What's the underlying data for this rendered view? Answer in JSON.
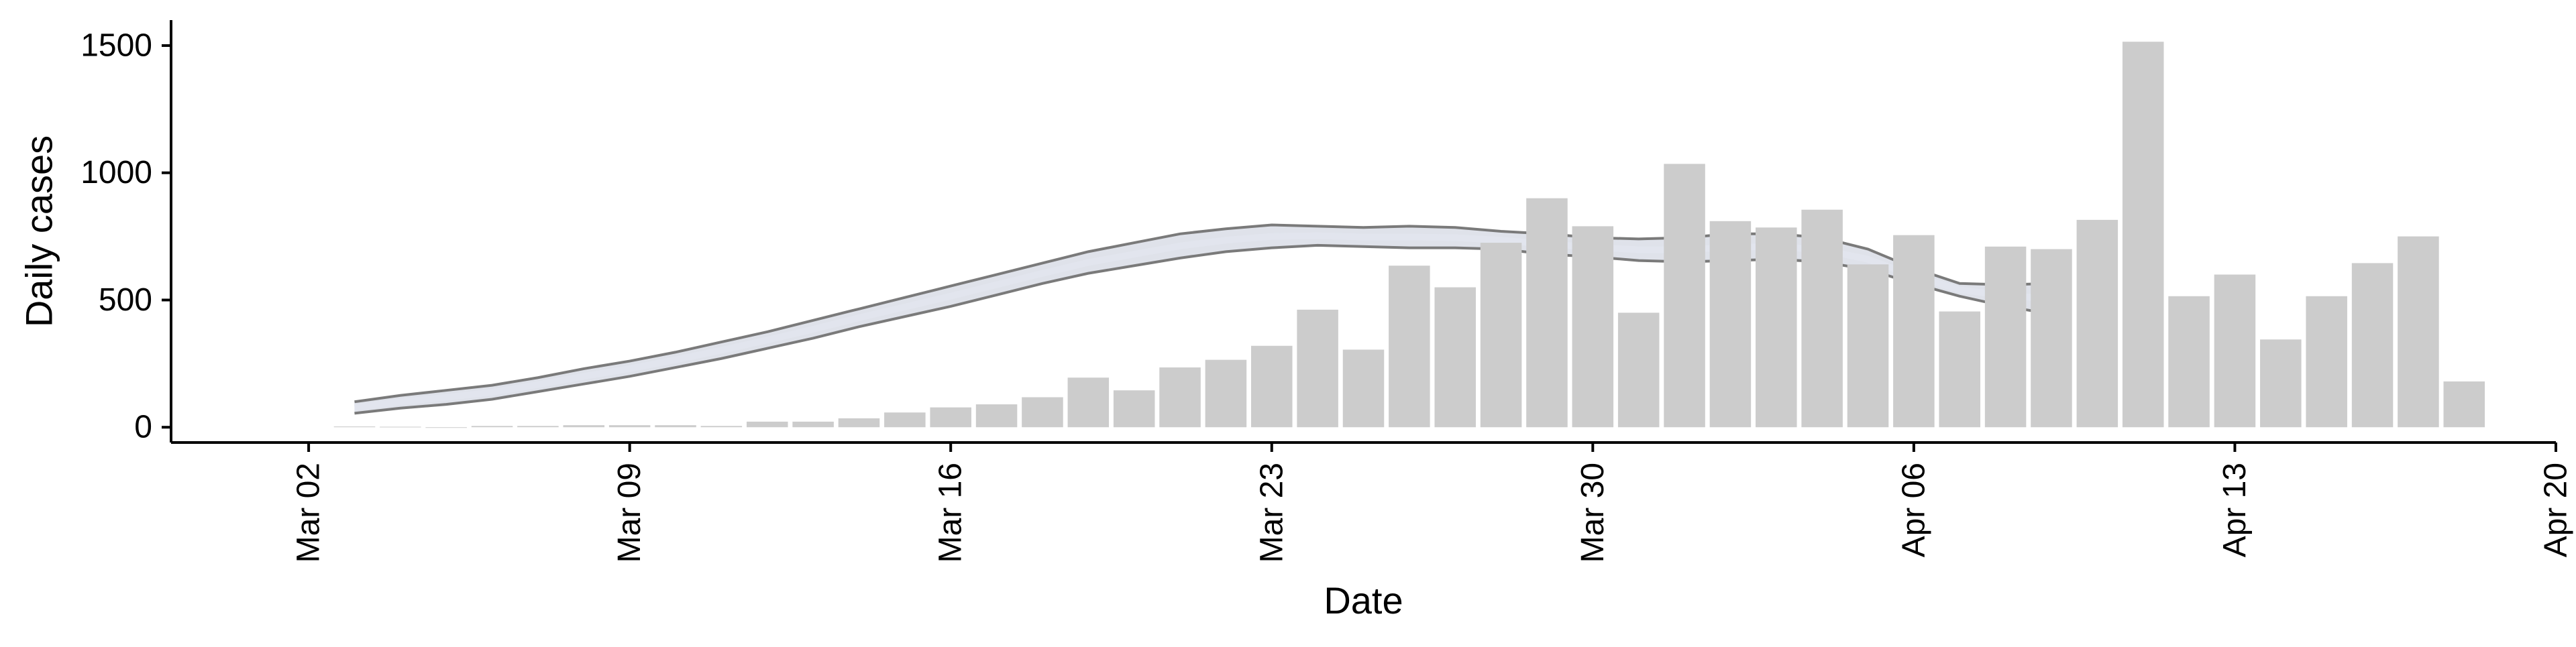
{
  "chart_data": {
    "type": "bar",
    "xlabel": "Date",
    "ylabel": "Daily cases",
    "ylim": [
      -60,
      1600
    ],
    "xlim": [
      "2020-02-28",
      "2020-04-20"
    ],
    "grid": false,
    "legend": "none",
    "y_ticks": [
      0,
      500,
      1000,
      1500
    ],
    "x_ticks": [
      {
        "date": "2020-03-02",
        "label": "Mar 02"
      },
      {
        "date": "2020-03-09",
        "label": "Mar 09"
      },
      {
        "date": "2020-03-16",
        "label": "Mar 16"
      },
      {
        "date": "2020-03-23",
        "label": "Mar 23"
      },
      {
        "date": "2020-03-30",
        "label": "Mar 30"
      },
      {
        "date": "2020-04-06",
        "label": "Apr 06"
      },
      {
        "date": "2020-04-13",
        "label": "Apr 13"
      },
      {
        "date": "2020-04-20",
        "label": "Apr 20"
      }
    ],
    "bars": {
      "color": "#cccccc",
      "x": [
        "2020-03-03",
        "2020-03-04",
        "2020-03-05",
        "2020-03-06",
        "2020-03-07",
        "2020-03-08",
        "2020-03-09",
        "2020-03-10",
        "2020-03-11",
        "2020-03-12",
        "2020-03-13",
        "2020-03-14",
        "2020-03-15",
        "2020-03-16",
        "2020-03-17",
        "2020-03-18",
        "2020-03-19",
        "2020-03-20",
        "2020-03-21",
        "2020-03-22",
        "2020-03-23",
        "2020-03-24",
        "2020-03-25",
        "2020-03-26",
        "2020-03-27",
        "2020-03-28",
        "2020-03-29",
        "2020-03-30",
        "2020-03-31",
        "2020-04-01",
        "2020-04-02",
        "2020-04-03",
        "2020-04-04",
        "2020-04-05",
        "2020-04-06",
        "2020-04-07",
        "2020-04-08",
        "2020-04-09",
        "2020-04-10",
        "2020-04-11",
        "2020-04-12",
        "2020-04-13",
        "2020-04-14",
        "2020-04-15",
        "2020-04-16",
        "2020-04-17",
        "2020-04-18"
      ],
      "values": [
        3,
        2,
        0,
        5,
        5,
        8,
        8,
        8,
        5,
        22,
        22,
        35,
        58,
        78,
        90,
        118,
        195,
        145,
        235,
        265,
        320,
        462,
        305,
        635,
        550,
        725,
        900,
        790,
        450,
        1035,
        810,
        785,
        855,
        640,
        755,
        455,
        710,
        700,
        815,
        1515,
        515,
        600,
        345,
        515,
        645,
        750,
        180
      ]
    },
    "band": {
      "line_color": "#7a7a7a",
      "fill_color": "#c5cad8",
      "x": [
        "2020-03-03",
        "2020-03-04",
        "2020-03-05",
        "2020-03-06",
        "2020-03-07",
        "2020-03-08",
        "2020-03-09",
        "2020-03-10",
        "2020-03-11",
        "2020-03-12",
        "2020-03-13",
        "2020-03-14",
        "2020-03-15",
        "2020-03-16",
        "2020-03-17",
        "2020-03-18",
        "2020-03-19",
        "2020-03-20",
        "2020-03-21",
        "2020-03-22",
        "2020-03-23",
        "2020-03-24",
        "2020-03-25",
        "2020-03-26",
        "2020-03-27",
        "2020-03-28",
        "2020-03-29",
        "2020-03-30",
        "2020-03-31",
        "2020-04-01",
        "2020-04-02",
        "2020-04-03",
        "2020-04-04",
        "2020-04-05",
        "2020-04-06",
        "2020-04-07",
        "2020-04-08",
        "2020-04-09"
      ],
      "upper": [
        100,
        125,
        145,
        165,
        195,
        230,
        260,
        295,
        335,
        375,
        420,
        465,
        510,
        555,
        600,
        645,
        690,
        725,
        760,
        780,
        795,
        790,
        785,
        790,
        785,
        770,
        760,
        745,
        740,
        745,
        760,
        760,
        745,
        700,
        625,
        565,
        560,
        565
      ],
      "lower": [
        55,
        75,
        90,
        110,
        140,
        170,
        200,
        235,
        270,
        310,
        350,
        395,
        435,
        475,
        520,
        565,
        605,
        635,
        665,
        690,
        705,
        715,
        710,
        705,
        705,
        700,
        680,
        670,
        655,
        650,
        655,
        660,
        650,
        620,
        565,
        515,
        475,
        445
      ]
    }
  }
}
